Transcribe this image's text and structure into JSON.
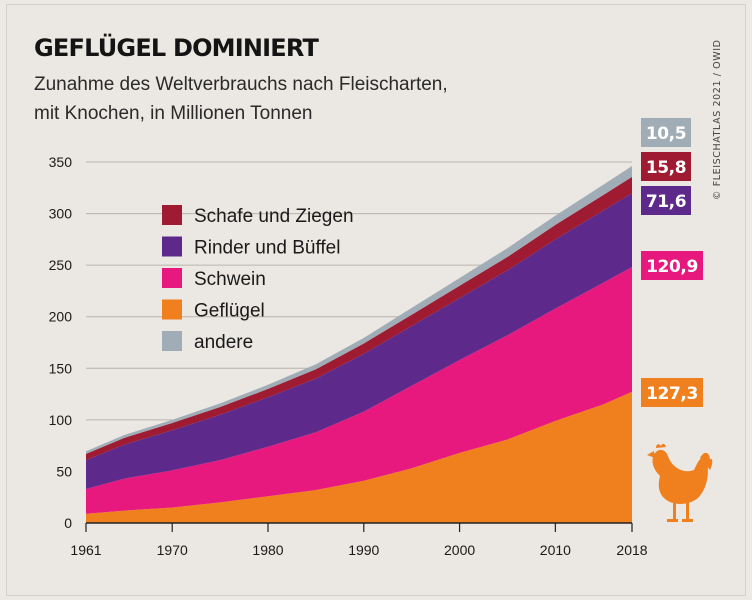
{
  "header": {
    "title": "GEFLÜGEL DOMINIERT",
    "subtitle_line1": "Zunahme des Weltverbrauchs nach Fleischarten,",
    "subtitle_line2": "mit Knochen, in Millionen Tonnen",
    "credit": "© FLEISCHATLAS 2021 / OWID"
  },
  "colors": {
    "gefluegel": "#f07f1e",
    "schwein": "#e7187e",
    "rinder": "#5d2a8c",
    "schafe": "#9e1b32",
    "andere": "#a1adb6",
    "chicken_icon": "#f07f1e"
  },
  "icon": "chicken-icon",
  "chart_data": {
    "type": "area",
    "stacked": true,
    "title": "GEFLÜGEL DOMINIERT",
    "ylim": [
      0,
      350
    ],
    "xlim": [
      1961,
      2018
    ],
    "y_ticks": [
      0,
      50,
      100,
      150,
      200,
      250,
      300,
      350
    ],
    "x_ticks": [
      1961,
      1970,
      1980,
      1990,
      2000,
      2010,
      2018
    ],
    "grid": true,
    "legend_position": "top-left inside",
    "x": [
      1961,
      1965,
      1970,
      1975,
      1980,
      1985,
      1990,
      1995,
      2000,
      2005,
      2010,
      2015,
      2018
    ],
    "series": [
      {
        "name": "Geflügel",
        "key": "gefluegel",
        "values": [
          9,
          12,
          15,
          20,
          26,
          32,
          41,
          53,
          68,
          81,
          99,
          115,
          127.3
        ]
      },
      {
        "name": "Schwein",
        "key": "schwein",
        "values": [
          24,
          31,
          36,
          41,
          48,
          56,
          67,
          80,
          90,
          101,
          109,
          118,
          120.9
        ]
      },
      {
        "name": "Rinder und Büffel",
        "key": "rinder",
        "values": [
          28,
          33,
          39,
          44,
          48,
          52,
          56,
          58,
          60,
          63,
          67,
          70,
          71.6
        ]
      },
      {
        "name": "Schafe und Ziegen",
        "key": "schafe",
        "values": [
          6,
          6.5,
          7,
          7.5,
          8,
          9,
          10,
          11,
          12,
          13,
          14,
          15,
          15.8
        ]
      },
      {
        "name": "andere",
        "key": "andere",
        "values": [
          2.5,
          2.8,
          3,
          3.5,
          4,
          5,
          5.5,
          6.5,
          7.5,
          8.5,
          9,
          10,
          10.5
        ]
      }
    ],
    "legend_order": [
      "schafe",
      "rinder",
      "schwein",
      "gefluegel",
      "andere"
    ],
    "end_labels": [
      {
        "key": "andere",
        "text": "10,5"
      },
      {
        "key": "schafe",
        "text": "15,8"
      },
      {
        "key": "rinder",
        "text": "71,6"
      },
      {
        "key": "schwein",
        "text": "120,9"
      },
      {
        "key": "gefluegel",
        "text": "127,3"
      }
    ]
  }
}
